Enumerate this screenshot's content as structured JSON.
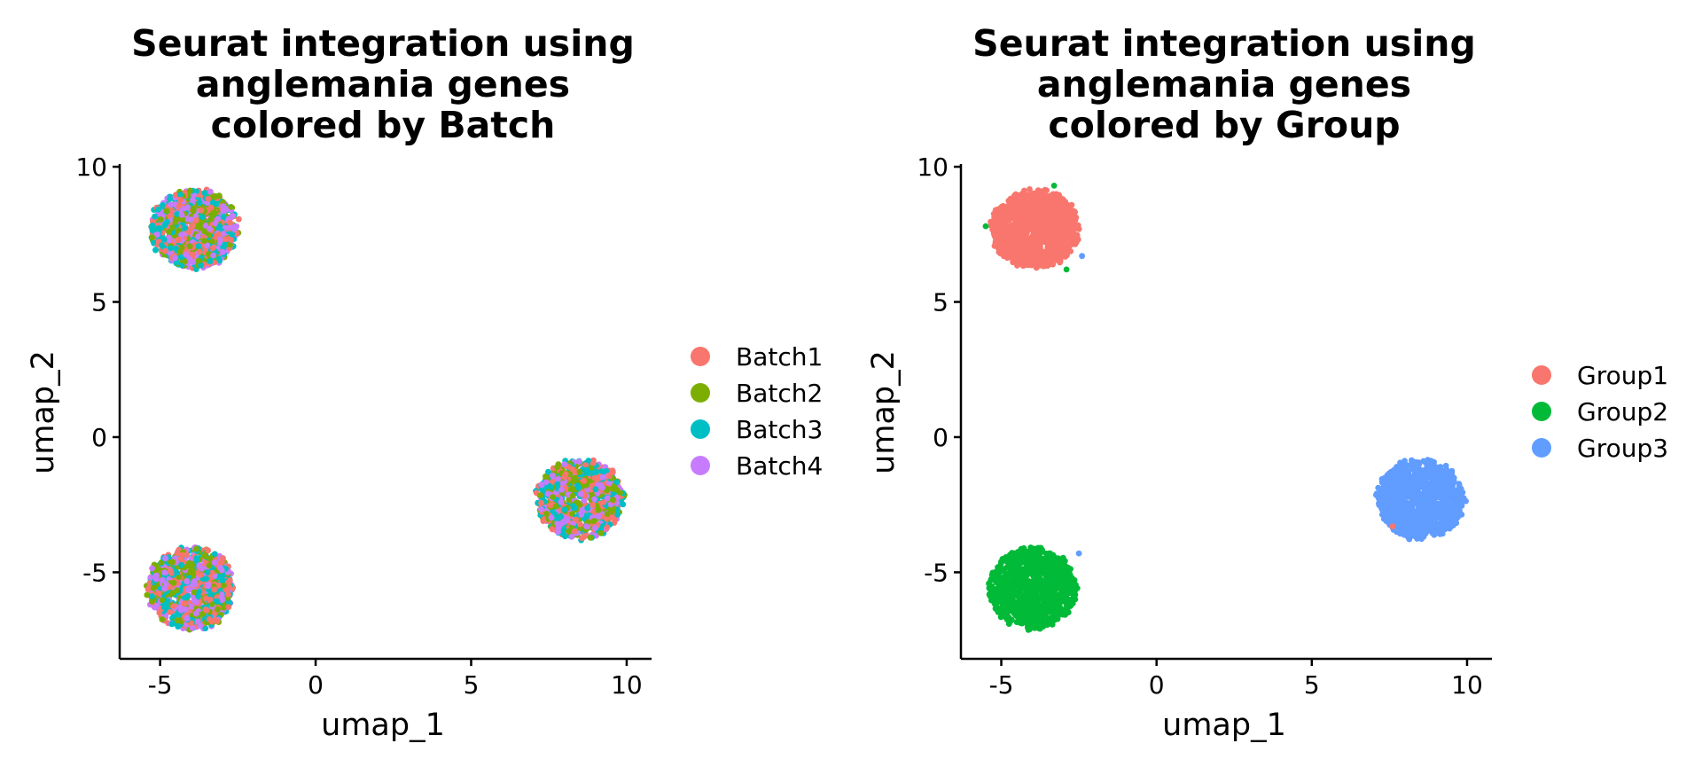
{
  "chart_data": [
    {
      "type": "scatter",
      "title": [
        "Seurat integration using",
        "anglemania genes",
        "colored by Batch"
      ],
      "xlabel": "umap_1",
      "ylabel": "umap_2",
      "xlim": [
        -6.3,
        10.8
      ],
      "ylim": [
        -8.2,
        10.1
      ],
      "x_ticks": [
        -5,
        0,
        5,
        10
      ],
      "y_ticks": [
        -5,
        0,
        5,
        10
      ],
      "grid": false,
      "legend_position": "right",
      "legend": [
        {
          "name": "Batch1",
          "color": "#F8766D"
        },
        {
          "name": "Batch2",
          "color": "#7CAE00"
        },
        {
          "name": "Batch3",
          "color": "#00BFC4"
        },
        {
          "name": "Batch4",
          "color": "#C77CFF"
        }
      ],
      "clusters": [
        {
          "center": [
            -3.9,
            7.7
          ],
          "radius": [
            1.45,
            1.5
          ],
          "points_per_series": 260,
          "series_mix": [
            0.25,
            0.25,
            0.25,
            0.25
          ]
        },
        {
          "center": [
            -4.0,
            -5.6
          ],
          "radius": [
            1.45,
            1.55
          ],
          "points_per_series": 260,
          "series_mix": [
            0.25,
            0.25,
            0.25,
            0.25
          ]
        },
        {
          "center": [
            8.5,
            -2.3
          ],
          "radius": [
            1.45,
            1.5
          ],
          "points_per_series": 220,
          "series_mix": [
            0.25,
            0.25,
            0.25,
            0.25
          ]
        }
      ]
    },
    {
      "type": "scatter",
      "title": [
        "Seurat integration using",
        "anglemania genes",
        "colored by Group"
      ],
      "xlabel": "umap_1",
      "ylabel": "umap_2",
      "xlim": [
        -6.3,
        10.8
      ],
      "ylim": [
        -8.2,
        10.1
      ],
      "x_ticks": [
        -5,
        0,
        5,
        10
      ],
      "y_ticks": [
        -5,
        0,
        5,
        10
      ],
      "grid": false,
      "legend_position": "right",
      "legend": [
        {
          "name": "Group1",
          "color": "#F8766D"
        },
        {
          "name": "Group2",
          "color": "#00BA38"
        },
        {
          "name": "Group3",
          "color": "#619CFF"
        }
      ],
      "clusters": [
        {
          "center": [
            -3.9,
            7.7
          ],
          "radius": [
            1.45,
            1.5
          ],
          "points": 1000,
          "series": 0
        },
        {
          "center": [
            -4.0,
            -5.6
          ],
          "radius": [
            1.45,
            1.55
          ],
          "points": 1000,
          "series": 1
        },
        {
          "center": [
            8.5,
            -2.3
          ],
          "radius": [
            1.45,
            1.5
          ],
          "points": 900,
          "series": 2
        }
      ],
      "outliers": [
        {
          "x": -5.5,
          "y": 7.8,
          "series": 1
        },
        {
          "x": -3.3,
          "y": 9.3,
          "series": 1
        },
        {
          "x": -2.9,
          "y": 6.2,
          "series": 1
        },
        {
          "x": -2.4,
          "y": 6.7,
          "series": 2
        },
        {
          "x": -2.5,
          "y": -4.3,
          "series": 2
        },
        {
          "x": 7.6,
          "y": -3.3,
          "series": 0
        }
      ]
    }
  ]
}
